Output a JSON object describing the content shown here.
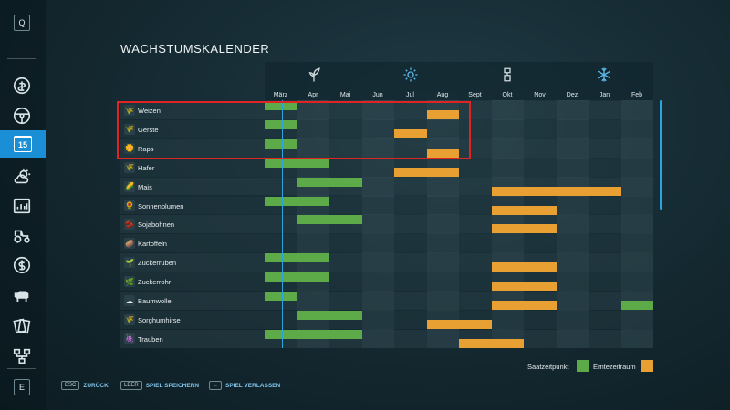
{
  "sidebar": {
    "top_key": "Q",
    "bottom_key": "E",
    "items": [
      {
        "name": "prices-icon"
      },
      {
        "name": "vehicles-icon"
      },
      {
        "name": "calendar-icon",
        "label": "15"
      },
      {
        "name": "weather-icon"
      },
      {
        "name": "statistics-icon"
      },
      {
        "name": "tractor-icon"
      },
      {
        "name": "finances-icon"
      },
      {
        "name": "animals-icon"
      },
      {
        "name": "contracts-icon"
      },
      {
        "name": "production-icon"
      }
    ]
  },
  "page": {
    "title": "WACHSTUMSKALENDER"
  },
  "months": [
    "März",
    "Apr",
    "Mai",
    "Jun",
    "Jul",
    "Aug",
    "Sept",
    "Okt",
    "Nov",
    "Dez",
    "Jan",
    "Feb"
  ],
  "seasons": [
    "spring-icon",
    "summer-icon",
    "autumn-icon",
    "winter-icon"
  ],
  "crops": [
    {
      "name": "Weizen",
      "sow": [
        [
          0,
          1
        ]
      ],
      "harvest": [
        [
          5,
          6
        ]
      ]
    },
    {
      "name": "Gerste",
      "sow": [
        [
          0,
          1
        ]
      ],
      "harvest": [
        [
          4,
          5
        ]
      ]
    },
    {
      "name": "Raps",
      "sow": [
        [
          0,
          1
        ]
      ],
      "harvest": [
        [
          5,
          6
        ]
      ]
    },
    {
      "name": "Hafer",
      "sow": [
        [
          0,
          2
        ]
      ],
      "harvest": [
        [
          4,
          6
        ]
      ]
    },
    {
      "name": "Mais",
      "sow": [
        [
          1,
          3
        ]
      ],
      "harvest": [
        [
          7,
          11
        ]
      ]
    },
    {
      "name": "Sonnenblumen",
      "sow": [
        [
          0,
          2
        ]
      ],
      "harvest": [
        [
          7,
          9
        ]
      ]
    },
    {
      "name": "Sojabohnen",
      "sow": [
        [
          1,
          3
        ]
      ],
      "harvest": [
        [
          7,
          9
        ]
      ]
    },
    {
      "name": "Kartoffeln",
      "sow": [],
      "harvest": []
    },
    {
      "name": "Zuckerrüben",
      "sow": [
        [
          0,
          2
        ]
      ],
      "harvest": [
        [
          7,
          9
        ]
      ]
    },
    {
      "name": "Zuckerrohr",
      "sow": [
        [
          0,
          2
        ]
      ],
      "harvest": [
        [
          7,
          9
        ]
      ]
    },
    {
      "name": "Baumwolle",
      "sow": [
        [
          0,
          1
        ]
      ],
      "harvest": [
        [
          7,
          9
        ]
      ],
      "sow_extra": [
        [
          11,
          12
        ]
      ]
    },
    {
      "name": "Sorghumhirse",
      "sow": [
        [
          1,
          3
        ]
      ],
      "harvest": [
        [
          5,
          7
        ]
      ]
    },
    {
      "name": "Trauben",
      "sow": [
        [
          0,
          3
        ]
      ],
      "harvest": [
        [
          6,
          8
        ]
      ]
    }
  ],
  "legend": {
    "sow_label": "Saatzeitpunkt",
    "harvest_label": "Erntezeitraum",
    "sow_color": "#5daa48",
    "harvest_color": "#e8a032"
  },
  "footer": [
    {
      "key": "ESC",
      "label": "ZURÜCK"
    },
    {
      "key": "LEER",
      "label": "SPIEL SPEICHERN"
    },
    {
      "key": "←",
      "label": "SPIEL VERLASSEN"
    }
  ]
}
